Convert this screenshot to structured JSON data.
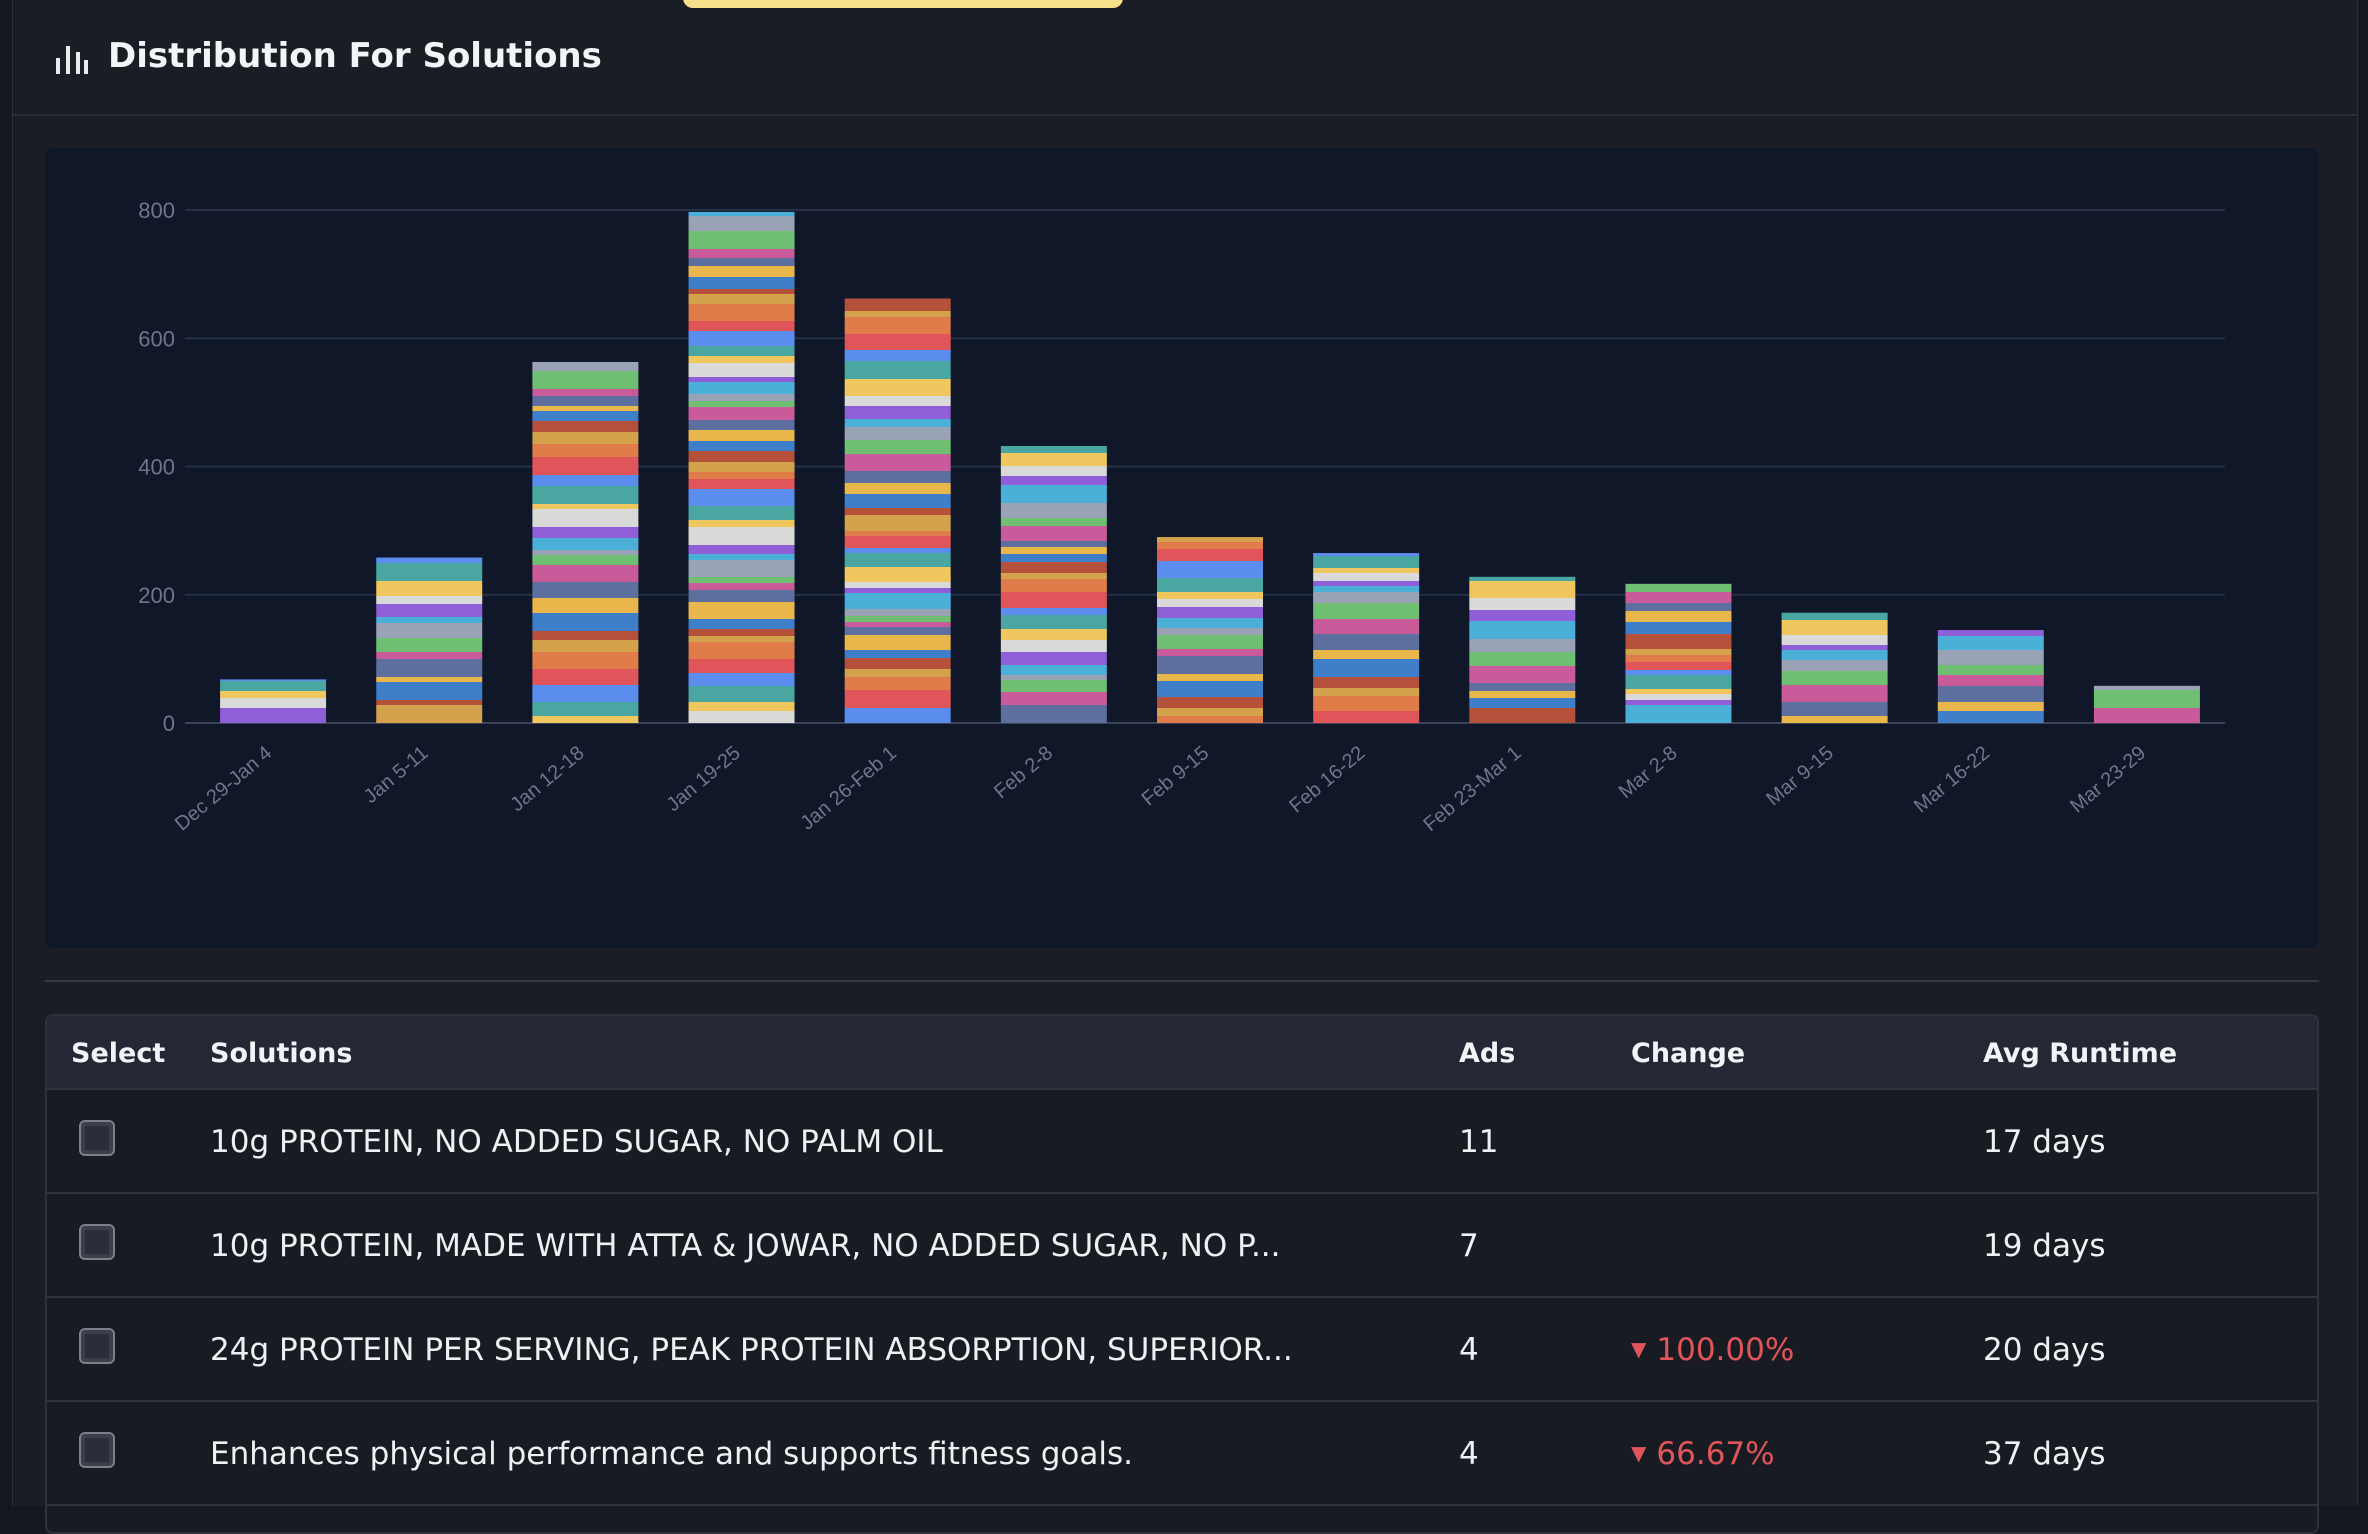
{
  "header": {
    "title": "Distribution For Solutions",
    "icon": "bar-chart-icon"
  },
  "chart_data": {
    "type": "bar",
    "stacked": true,
    "categories": [
      "Dec 29-Jan 4",
      "Jan 5-11",
      "Jan 12-18",
      "Jan 19-25",
      "Jan 26-Feb 1",
      "Feb 2-8",
      "Feb 9-15",
      "Feb 16-22",
      "Feb 23-Mar 1",
      "Mar 2-8",
      "Mar 9-15",
      "Mar 16-22",
      "Mar 23-29"
    ],
    "values": [
      68,
      258,
      563,
      797,
      662,
      432,
      290,
      265,
      228,
      217,
      172,
      145,
      58
    ],
    "ylim": [
      0,
      800
    ],
    "yticks": [
      0,
      200,
      400,
      600,
      800
    ],
    "grid": true,
    "legend": "none"
  },
  "table": {
    "headers": {
      "select": "Select",
      "solutions": "Solutions",
      "ads": "Ads",
      "change": "Change",
      "avg_runtime": "Avg Runtime"
    },
    "rows": [
      {
        "solution": "10g PROTEIN, NO ADDED SUGAR, NO PALM OIL",
        "ads": "11",
        "change": "",
        "runtime": "17 days"
      },
      {
        "solution": "10g PROTEIN, MADE WITH ATTA & JOWAR, NO ADDED SUGAR, NO P...",
        "ads": "7",
        "change": "",
        "runtime": "19 days"
      },
      {
        "solution": "24g PROTEIN PER SERVING, PEAK PROTEIN ABSORPTION, SUPERIOR...",
        "ads": "4",
        "change": "100.00%",
        "runtime": "20 days"
      },
      {
        "solution": "Enhances physical performance and supports fitness goals.",
        "ads": "4",
        "change": "66.67%",
        "runtime": "37 days"
      }
    ]
  },
  "colors": {
    "background": "#1a1d24",
    "chart_bg": "#0f1729",
    "negative": "#e0555a",
    "grid": "#2a3348"
  }
}
